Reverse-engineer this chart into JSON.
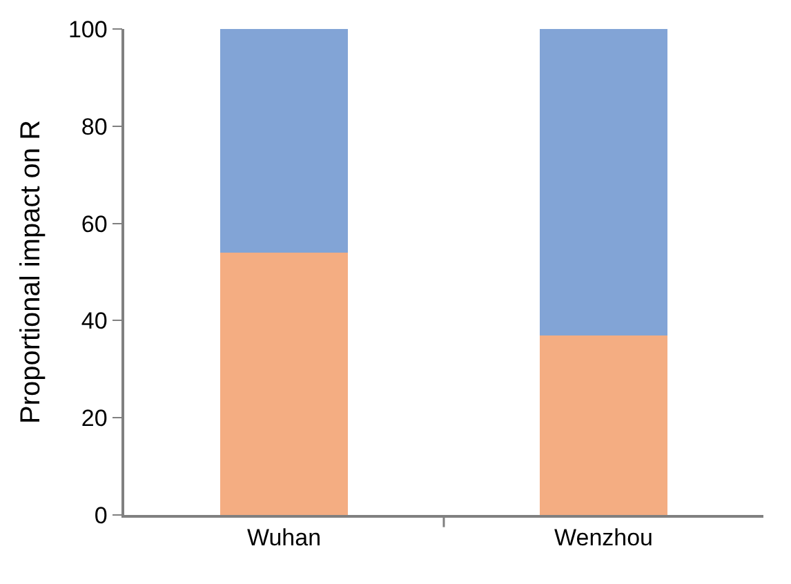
{
  "chart_data": {
    "type": "bar",
    "stacked": true,
    "ylabel": "Proportional impact on R",
    "categories": [
      "Wuhan",
      "Wenzhou"
    ],
    "series": [
      {
        "color": "#f4ad82",
        "values": [
          54,
          37
        ]
      },
      {
        "color": "#82a4d6",
        "values": [
          46,
          63
        ]
      }
    ],
    "ylim": [
      0,
      100
    ],
    "yticks": [
      0,
      20,
      40,
      60,
      80,
      100
    ]
  }
}
